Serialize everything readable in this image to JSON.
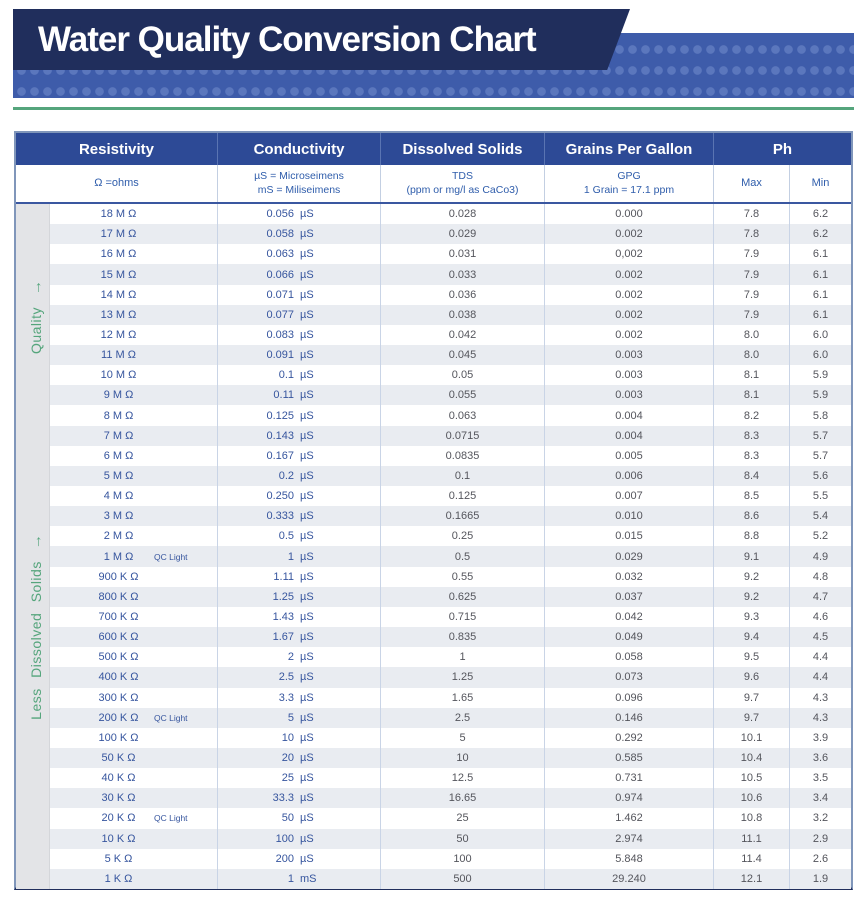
{
  "title": "Water Quality Conversion Chart",
  "side_labels": {
    "quality": "Quality",
    "solids": "Less Dissolved Solids",
    "arrow": "→"
  },
  "table": {
    "headers": {
      "resistivity": "Resistivity",
      "conductivity": "Conductivity",
      "dissolved": "Dissolved Solids",
      "gpg": "Grains Per Gallon",
      "ph": "Ph"
    },
    "subheaders": {
      "resistivity": "Ω =ohms",
      "conductivity_1": "µS = Microseimens",
      "conductivity_2": "mS = Miliseimens",
      "dissolved_1": "TDS",
      "dissolved_2": "(ppm or mg/l as CaCo3)",
      "gpg_1": "GPG",
      "gpg_2": "1 Grain = 17.1 ppm",
      "max": "Max",
      "min": "Min"
    },
    "qc_label": "QC Light",
    "rows": [
      {
        "r": "18 M Ω",
        "qc": false,
        "cv": "0.056",
        "cu": "µS",
        "tds": "0.028",
        "gpg": "0.000",
        "max": "7.8",
        "min": "6.2"
      },
      {
        "r": "17 M Ω",
        "qc": false,
        "cv": "0.058",
        "cu": "µS",
        "tds": "0.029",
        "gpg": "0.002",
        "max": "7.8",
        "min": "6.2"
      },
      {
        "r": "16 M Ω",
        "qc": false,
        "cv": "0.063",
        "cu": "µS",
        "tds": "0.031",
        "gpg": "0,002",
        "max": "7.9",
        "min": "6.1"
      },
      {
        "r": "15 M Ω",
        "qc": false,
        "cv": "0.066",
        "cu": "µS",
        "tds": "0.033",
        "gpg": "0.002",
        "max": "7.9",
        "min": "6.1"
      },
      {
        "r": "14 M Ω",
        "qc": false,
        "cv": "0.071",
        "cu": "µS",
        "tds": "0.036",
        "gpg": "0.002",
        "max": "7.9",
        "min": "6.1"
      },
      {
        "r": "13 M Ω",
        "qc": false,
        "cv": "0.077",
        "cu": "µS",
        "tds": "0.038",
        "gpg": "0.002",
        "max": "7.9",
        "min": "6.1"
      },
      {
        "r": "12 M Ω",
        "qc": false,
        "cv": "0.083",
        "cu": "µS",
        "tds": "0.042",
        "gpg": "0.002",
        "max": "8.0",
        "min": "6.0"
      },
      {
        "r": "11 M Ω",
        "qc": false,
        "cv": "0.091",
        "cu": "µS",
        "tds": "0.045",
        "gpg": "0.003",
        "max": "8.0",
        "min": "6.0"
      },
      {
        "r": "10 M Ω",
        "qc": false,
        "cv": "0.1",
        "cu": "µS",
        "tds": "0.05",
        "gpg": "0.003",
        "max": "8.1",
        "min": "5.9"
      },
      {
        "r": "9 M Ω",
        "qc": false,
        "cv": "0.11",
        "cu": "µS",
        "tds": "0.055",
        "gpg": "0.003",
        "max": "8.1",
        "min": "5.9"
      },
      {
        "r": "8 M Ω",
        "qc": false,
        "cv": "0.125",
        "cu": "µS",
        "tds": "0.063",
        "gpg": "0.004",
        "max": "8.2",
        "min": "5.8"
      },
      {
        "r": "7 M Ω",
        "qc": false,
        "cv": "0.143",
        "cu": "µS",
        "tds": "0.0715",
        "gpg": "0.004",
        "max": "8.3",
        "min": "5.7"
      },
      {
        "r": "6 M Ω",
        "qc": false,
        "cv": "0.167",
        "cu": "µS",
        "tds": "0.0835",
        "gpg": "0.005",
        "max": "8.3",
        "min": "5.7"
      },
      {
        "r": "5 M Ω",
        "qc": false,
        "cv": "0.2",
        "cu": "µS",
        "tds": "0.1",
        "gpg": "0.006",
        "max": "8.4",
        "min": "5.6"
      },
      {
        "r": "4 M Ω",
        "qc": false,
        "cv": "0.250",
        "cu": "µS",
        "tds": "0.125",
        "gpg": "0.007",
        "max": "8.5",
        "min": "5.5"
      },
      {
        "r": "3 M Ω",
        "qc": false,
        "cv": "0.333",
        "cu": "µS",
        "tds": "0.1665",
        "gpg": "0.010",
        "max": "8.6",
        "min": "5.4"
      },
      {
        "r": "2 M Ω",
        "qc": false,
        "cv": "0.5",
        "cu": "µS",
        "tds": "0.25",
        "gpg": "0.015",
        "max": "8.8",
        "min": "5.2"
      },
      {
        "r": "1 M Ω",
        "qc": true,
        "cv": "1",
        "cu": "µS",
        "tds": "0.5",
        "gpg": "0.029",
        "max": "9.1",
        "min": "4.9"
      },
      {
        "r": "900 K Ω",
        "qc": false,
        "cv": "1.11",
        "cu": "µS",
        "tds": "0.55",
        "gpg": "0.032",
        "max": "9.2",
        "min": "4.8"
      },
      {
        "r": "800 K Ω",
        "qc": false,
        "cv": "1.25",
        "cu": "µS",
        "tds": "0.625",
        "gpg": "0.037",
        "max": "9.2",
        "min": "4.7"
      },
      {
        "r": "700 K Ω",
        "qc": false,
        "cv": "1.43",
        "cu": "µS",
        "tds": "0.715",
        "gpg": "0.042",
        "max": "9.3",
        "min": "4.6"
      },
      {
        "r": "600 K Ω",
        "qc": false,
        "cv": "1.67",
        "cu": "µS",
        "tds": "0.835",
        "gpg": "0.049",
        "max": "9.4",
        "min": "4.5"
      },
      {
        "r": "500 K Ω",
        "qc": false,
        "cv": "2",
        "cu": "µS",
        "tds": "1",
        "gpg": "0.058",
        "max": "9.5",
        "min": "4.4"
      },
      {
        "r": "400 K Ω",
        "qc": false,
        "cv": "2.5",
        "cu": "µS",
        "tds": "1.25",
        "gpg": "0.073",
        "max": "9.6",
        "min": "4.4"
      },
      {
        "r": "300 K Ω",
        "qc": false,
        "cv": "3.3",
        "cu": "µS",
        "tds": "1.65",
        "gpg": "0.096",
        "max": "9.7",
        "min": "4.3"
      },
      {
        "r": "200 K Ω",
        "qc": true,
        "cv": "5",
        "cu": "µS",
        "tds": "2.5",
        "gpg": "0.146",
        "max": "9.7",
        "min": "4.3"
      },
      {
        "r": "100 K Ω",
        "qc": false,
        "cv": "10",
        "cu": "µS",
        "tds": "5",
        "gpg": "0.292",
        "max": "10.1",
        "min": "3.9"
      },
      {
        "r": "50 K Ω",
        "qc": false,
        "cv": "20",
        "cu": "µS",
        "tds": "10",
        "gpg": "0.585",
        "max": "10.4",
        "min": "3.6"
      },
      {
        "r": "40 K Ω",
        "qc": false,
        "cv": "25",
        "cu": "µS",
        "tds": "12.5",
        "gpg": "0.731",
        "max": "10.5",
        "min": "3.5"
      },
      {
        "r": "30 K Ω",
        "qc": false,
        "cv": "33.3",
        "cu": "µS",
        "tds": "16.65",
        "gpg": "0.974",
        "max": "10.6",
        "min": "3.4"
      },
      {
        "r": "20 K Ω",
        "qc": true,
        "cv": "50",
        "cu": "µS",
        "tds": "25",
        "gpg": "1.462",
        "max": "10.8",
        "min": "3.2"
      },
      {
        "r": "10 K Ω",
        "qc": false,
        "cv": "100",
        "cu": "µS",
        "tds": "50",
        "gpg": "2.974",
        "max": "11.1",
        "min": "2.9"
      },
      {
        "r": "5 K Ω",
        "qc": false,
        "cv": "200",
        "cu": "µS",
        "tds": "100",
        "gpg": "5.848",
        "max": "11.4",
        "min": "2.6"
      },
      {
        "r": "1 K Ω",
        "qc": false,
        "cv": "1",
        "cu": "mS",
        "tds": "500",
        "gpg": "29.240",
        "max": "12.1",
        "min": "1.9"
      }
    ]
  },
  "colors": {
    "navy": "#202e5c",
    "band": "#3e5caa",
    "dot": "#5b77bd",
    "green": "#55a57c",
    "headbg": "#2d4a96",
    "subtext": "#2f5dab",
    "bluetext": "#36559e",
    "graytext": "#54555c",
    "stripe": "#e9ecf1",
    "gutter": "#e3e4e7",
    "divider": "#c9d4e6",
    "tableborder": "#8096ba"
  }
}
